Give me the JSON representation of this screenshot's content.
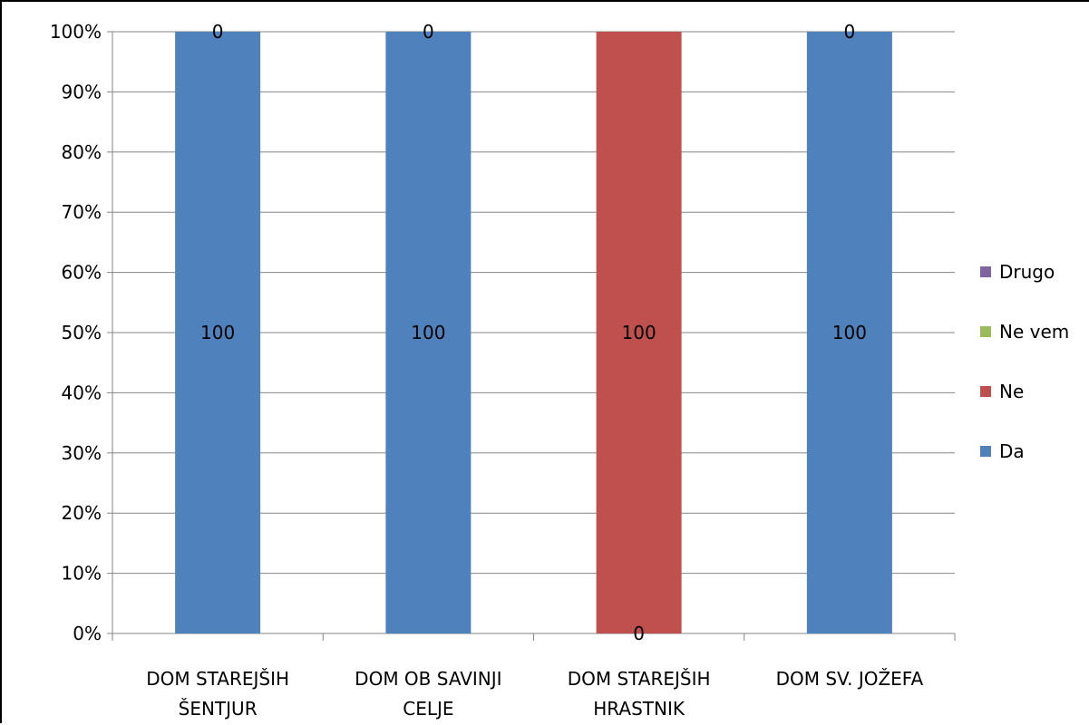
{
  "chart_data": {
    "type": "bar",
    "stacked": true,
    "percent_stacked": true,
    "title": "",
    "xlabel": "",
    "ylabel": "",
    "ylim": [
      0,
      100
    ],
    "y_ticks": [
      "0%",
      "10%",
      "20%",
      "30%",
      "40%",
      "50%",
      "60%",
      "70%",
      "80%",
      "90%",
      "100%"
    ],
    "grid": true,
    "legend_position": "right",
    "categories": [
      [
        "DOM STAREJŠIH",
        "ŠENTJUR"
      ],
      [
        "DOM OB SAVINJI",
        "CELJE"
      ],
      [
        "DOM STAREJŠIH",
        "HRASTNIK"
      ],
      [
        "DOM SV. JOŽEFA"
      ]
    ],
    "series": [
      {
        "name": "Da",
        "color": "#4F81BD",
        "values": [
          100,
          100,
          0,
          100
        ]
      },
      {
        "name": "Ne",
        "color": "#C0504D",
        "values": [
          0,
          0,
          100,
          0
        ]
      },
      {
        "name": "Ne vem",
        "color": "#9BBB59",
        "values": [
          0,
          0,
          0,
          0
        ]
      },
      {
        "name": "Drugo",
        "color": "#8064A2",
        "values": [
          0,
          0,
          0,
          0
        ]
      }
    ],
    "data_labels": [
      [
        "100",
        "0"
      ],
      [
        "100",
        "0"
      ],
      [
        "0",
        "100"
      ],
      [
        "100",
        "0"
      ]
    ],
    "legend_order": [
      "Drugo",
      "Ne vem",
      "Ne",
      "Da"
    ]
  }
}
